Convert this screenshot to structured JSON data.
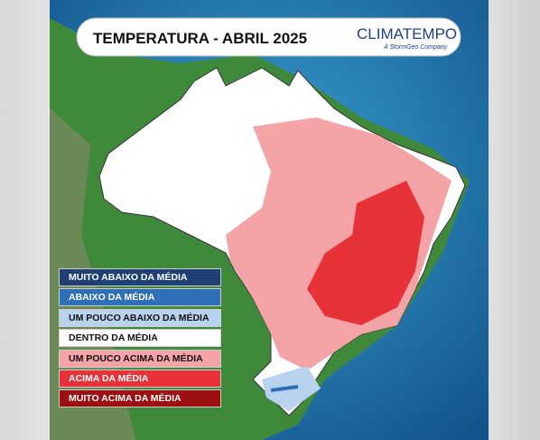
{
  "header": {
    "title": "TEMPERATURA - ABRIL 2025",
    "brand": "CLIMATEMPO",
    "brand_tagline": "A StormGeo Company"
  },
  "legend": {
    "items": [
      {
        "label": "MUITO ABAIXO DA MÉDIA",
        "color": "#1f3f75"
      },
      {
        "label": "ABAIXO DA MÉDIA",
        "color": "#2f6fb8"
      },
      {
        "label": "UM POUCO ABAIXO DA MÉDIA",
        "color": "#b9d3ef"
      },
      {
        "label": "DENTRO DA MÉDIA",
        "color": "#ffffff"
      },
      {
        "label": "UM POUCO ACIMA DA MÉDIA",
        "color": "#f4a3a6"
      },
      {
        "label": "ACIMA DA MÉDIA",
        "color": "#e8323a"
      },
      {
        "label": "MUITO ACIMA DA MÉDIA",
        "color": "#9e0f12"
      }
    ]
  }
}
